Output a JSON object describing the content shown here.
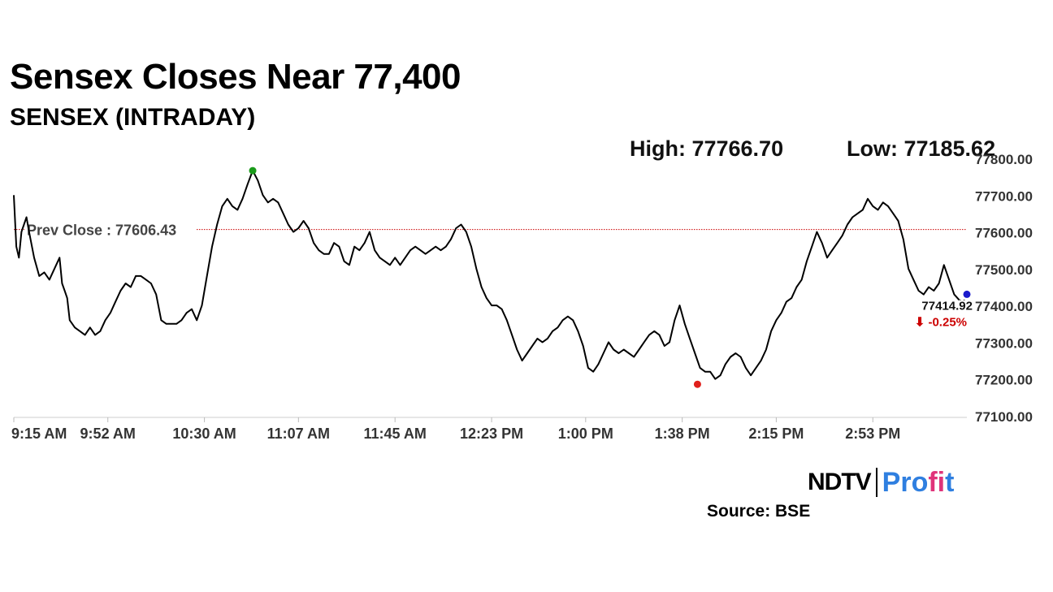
{
  "header": {
    "title": "Sensex Closes Near 77,400",
    "subtitle": "SENSEX (INTRADAY)",
    "high_text": "High: 77766.70",
    "low_text": "Low: 77185.62"
  },
  "footer": {
    "logo_ndtv": "NDTV",
    "logo_profit_a": "Pro",
    "logo_profit_b": "fi",
    "logo_profit_c": "t",
    "source": "Source: BSE"
  },
  "colors": {
    "line": "#000000",
    "prev_close": "#cc0000",
    "high_marker": "#1a9b1a",
    "low_marker": "#e0201c",
    "last_marker": "#1a1acc",
    "change_negative": "#cc0000",
    "axis_text": "#333333"
  },
  "chart_data": {
    "type": "line",
    "title": "SENSEX (INTRADAY)",
    "ylim": [
      77100,
      77800
    ],
    "y_ticks": [
      "77800.00",
      "77700.00",
      "77600.00",
      "77500.00",
      "77400.00",
      "77300.00",
      "77200.00",
      "77100.00"
    ],
    "x_ticks": [
      {
        "label": "9:15 AM",
        "t": 0
      },
      {
        "label": "9:52 AM",
        "t": 37
      },
      {
        "label": "10:30 AM",
        "t": 75
      },
      {
        "label": "11:07 AM",
        "t": 112
      },
      {
        "label": "11:45 AM",
        "t": 150
      },
      {
        "label": "12:23 PM",
        "t": 188
      },
      {
        "label": "1:00 PM",
        "t": 225
      },
      {
        "label": "1:38 PM",
        "t": 263
      },
      {
        "label": "2:15 PM",
        "t": 300
      },
      {
        "label": "2:53 PM",
        "t": 338
      }
    ],
    "x_max": 375,
    "prev_close": {
      "label": "Prev Close : 77606.43",
      "value": 77606.43
    },
    "high": {
      "t": 94,
      "value": 77766.7
    },
    "low": {
      "t": 269,
      "value": 77185.62
    },
    "last": {
      "t": 370,
      "value": 77414.92,
      "label": "77414.92",
      "change": "⬇ -0.25%"
    },
    "series": [
      {
        "points": [
          [
            0,
            77700
          ],
          [
            1,
            77560
          ],
          [
            2,
            77530
          ],
          [
            3,
            77600
          ],
          [
            4,
            77620
          ],
          [
            5,
            77640
          ],
          [
            6,
            77600
          ],
          [
            8,
            77530
          ],
          [
            10,
            77480
          ],
          [
            12,
            77490
          ],
          [
            14,
            77470
          ],
          [
            16,
            77500
          ],
          [
            18,
            77530
          ],
          [
            19,
            77460
          ],
          [
            20,
            77440
          ],
          [
            21,
            77420
          ],
          [
            22,
            77360
          ],
          [
            24,
            77340
          ],
          [
            26,
            77330
          ],
          [
            28,
            77320
          ],
          [
            30,
            77340
          ],
          [
            32,
            77320
          ],
          [
            34,
            77330
          ],
          [
            36,
            77360
          ],
          [
            38,
            77380
          ],
          [
            40,
            77410
          ],
          [
            42,
            77440
          ],
          [
            44,
            77460
          ],
          [
            46,
            77450
          ],
          [
            48,
            77480
          ],
          [
            50,
            77480
          ],
          [
            52,
            77470
          ],
          [
            54,
            77460
          ],
          [
            56,
            77430
          ],
          [
            58,
            77360
          ],
          [
            60,
            77350
          ],
          [
            62,
            77350
          ],
          [
            64,
            77350
          ],
          [
            66,
            77360
          ],
          [
            68,
            77380
          ],
          [
            70,
            77390
          ],
          [
            72,
            77360
          ],
          [
            74,
            77400
          ],
          [
            76,
            77480
          ],
          [
            78,
            77560
          ],
          [
            80,
            77620
          ],
          [
            82,
            77670
          ],
          [
            84,
            77690
          ],
          [
            86,
            77670
          ],
          [
            88,
            77660
          ],
          [
            90,
            77690
          ],
          [
            92,
            77730
          ],
          [
            94,
            77766.7
          ],
          [
            96,
            77740
          ],
          [
            98,
            77700
          ],
          [
            100,
            77680
          ],
          [
            102,
            77690
          ],
          [
            104,
            77680
          ],
          [
            106,
            77650
          ],
          [
            108,
            77620
          ],
          [
            110,
            77600
          ],
          [
            112,
            77610
          ],
          [
            114,
            77630
          ],
          [
            116,
            77610
          ],
          [
            118,
            77570
          ],
          [
            120,
            77550
          ],
          [
            122,
            77540
          ],
          [
            124,
            77540
          ],
          [
            126,
            77570
          ],
          [
            128,
            77560
          ],
          [
            130,
            77520
          ],
          [
            132,
            77510
          ],
          [
            134,
            77560
          ],
          [
            136,
            77550
          ],
          [
            138,
            77570
          ],
          [
            140,
            77600
          ],
          [
            142,
            77550
          ],
          [
            144,
            77530
          ],
          [
            146,
            77520
          ],
          [
            148,
            77510
          ],
          [
            150,
            77530
          ],
          [
            152,
            77510
          ],
          [
            154,
            77530
          ],
          [
            156,
            77550
          ],
          [
            158,
            77560
          ],
          [
            160,
            77550
          ],
          [
            162,
            77540
          ],
          [
            164,
            77550
          ],
          [
            166,
            77560
          ],
          [
            168,
            77550
          ],
          [
            170,
            77560
          ],
          [
            172,
            77580
          ],
          [
            174,
            77610
          ],
          [
            176,
            77620
          ],
          [
            178,
            77600
          ],
          [
            180,
            77560
          ],
          [
            182,
            77500
          ],
          [
            184,
            77450
          ],
          [
            186,
            77420
          ],
          [
            188,
            77400
          ],
          [
            190,
            77400
          ],
          [
            192,
            77390
          ],
          [
            194,
            77360
          ],
          [
            196,
            77320
          ],
          [
            198,
            77280
          ],
          [
            200,
            77250
          ],
          [
            202,
            77270
          ],
          [
            204,
            77290
          ],
          [
            206,
            77310
          ],
          [
            208,
            77300
          ],
          [
            210,
            77310
          ],
          [
            212,
            77330
          ],
          [
            214,
            77340
          ],
          [
            216,
            77360
          ],
          [
            218,
            77370
          ],
          [
            220,
            77360
          ],
          [
            222,
            77330
          ],
          [
            224,
            77290
          ],
          [
            226,
            77230
          ],
          [
            228,
            77220
          ],
          [
            230,
            77240
          ],
          [
            232,
            77270
          ],
          [
            234,
            77300
          ],
          [
            236,
            77280
          ],
          [
            238,
            77270
          ],
          [
            240,
            77280
          ],
          [
            242,
            77270
          ],
          [
            244,
            77260
          ],
          [
            246,
            77280
          ],
          [
            248,
            77300
          ],
          [
            250,
            77320
          ],
          [
            252,
            77330
          ],
          [
            254,
            77320
          ],
          [
            256,
            77290
          ],
          [
            258,
            77300
          ],
          [
            260,
            77360
          ],
          [
            262,
            77400
          ],
          [
            264,
            77350
          ],
          [
            266,
            77310
          ],
          [
            268,
            77270
          ],
          [
            270,
            77230
          ],
          [
            272,
            77220
          ],
          [
            274,
            77220
          ],
          [
            276,
            77200
          ],
          [
            278,
            77210
          ],
          [
            280,
            77240
          ],
          [
            282,
            77260
          ],
          [
            284,
            77270
          ],
          [
            286,
            77260
          ],
          [
            288,
            77230
          ],
          [
            290,
            77210
          ],
          [
            292,
            77230
          ],
          [
            294,
            77250
          ],
          [
            296,
            77280
          ],
          [
            298,
            77330
          ],
          [
            300,
            77360
          ],
          [
            302,
            77380
          ],
          [
            304,
            77410
          ],
          [
            306,
            77420
          ],
          [
            308,
            77450
          ],
          [
            310,
            77470
          ],
          [
            312,
            77520
          ],
          [
            314,
            77560
          ],
          [
            316,
            77600
          ],
          [
            318,
            77570
          ],
          [
            320,
            77530
          ],
          [
            322,
            77550
          ],
          [
            324,
            77570
          ],
          [
            326,
            77590
          ],
          [
            328,
            77620
          ],
          [
            330,
            77640
          ],
          [
            332,
            77650
          ],
          [
            334,
            77660
          ],
          [
            336,
            77690
          ],
          [
            338,
            77670
          ],
          [
            340,
            77660
          ],
          [
            342,
            77680
          ],
          [
            344,
            77670
          ],
          [
            346,
            77650
          ],
          [
            348,
            77630
          ],
          [
            350,
            77580
          ],
          [
            352,
            77500
          ],
          [
            354,
            77470
          ],
          [
            356,
            77440
          ],
          [
            358,
            77430
          ],
          [
            360,
            77450
          ],
          [
            362,
            77440
          ],
          [
            364,
            77460
          ],
          [
            366,
            77510
          ],
          [
            368,
            77470
          ],
          [
            370,
            77430
          ],
          [
            372,
            77414.92
          ]
        ]
      }
    ]
  }
}
